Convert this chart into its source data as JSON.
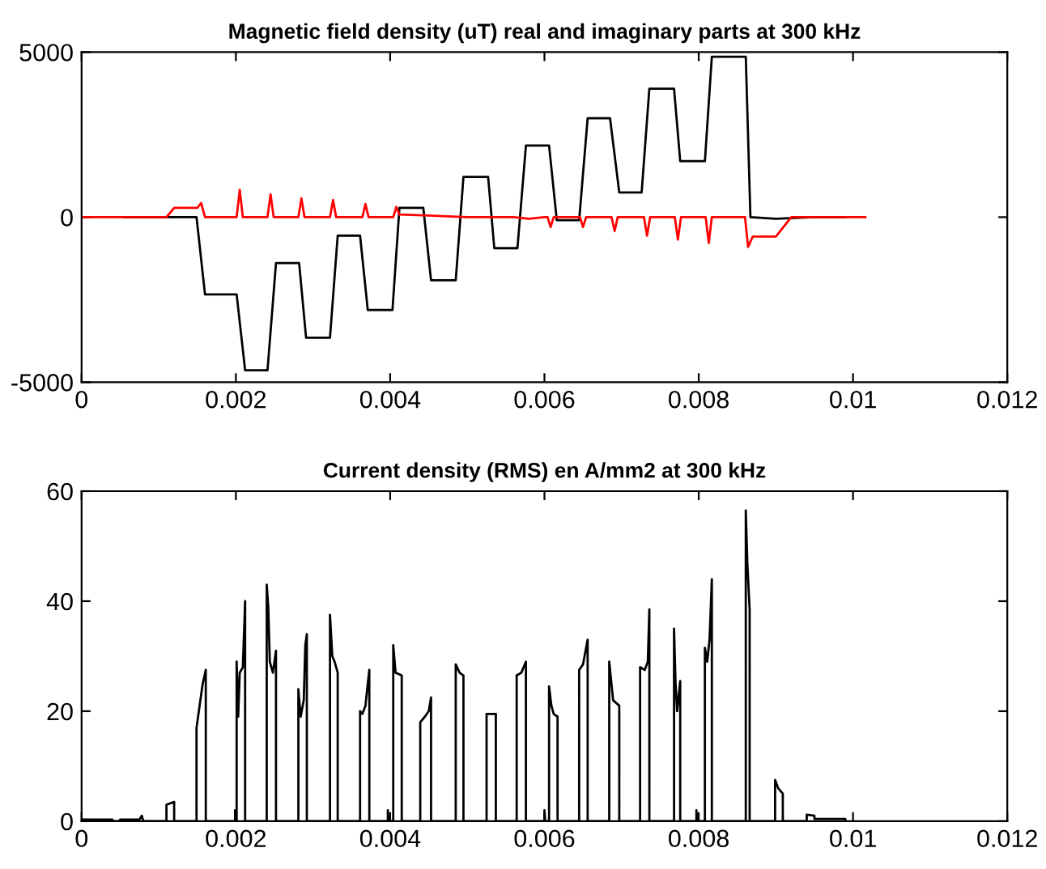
{
  "chart_data": [
    {
      "type": "line",
      "title": "Magnetic field density (uT) real and imaginary parts at 300 kHz",
      "grid": false,
      "legend": false,
      "xlim": [
        0,
        0.012
      ],
      "xticks": [
        0,
        0.002,
        0.004,
        0.006,
        0.008,
        {
          "value": 0.01,
          "label": "0.01"
        },
        0.012
      ],
      "ylim": [
        -5000,
        5000
      ],
      "yticks": [
        -5000,
        0,
        5000
      ],
      "series": [
        {
          "color": "#000000",
          "x": [
            0.00055,
            0.00149,
            0.0016,
            0.00201,
            0.00212,
            0.00241,
            0.00252,
            0.00282,
            0.00291,
            0.00322,
            0.00332,
            0.00361,
            0.00371,
            0.00403,
            0.00412,
            0.00443,
            0.00453,
            0.00485,
            0.00495,
            0.00527,
            0.00535,
            0.00565,
            0.00576,
            0.00606,
            0.00616,
            0.00645,
            0.00656,
            0.00685,
            0.00697,
            0.00726,
            0.00736,
            0.00768,
            0.00776,
            0.00808,
            0.00817,
            0.00861,
            0.00867,
            0.009,
            0.0095,
            0.0099
          ],
          "values": [
            0,
            0,
            -2340,
            -2340,
            -4640,
            -4640,
            -1390,
            -1390,
            -3650,
            -3650,
            -560,
            -560,
            -2810,
            -2810,
            280,
            280,
            -1910,
            -1910,
            1220,
            1220,
            -940,
            -940,
            2170,
            2170,
            -90,
            -90,
            3000,
            3000,
            750,
            750,
            3890,
            3890,
            1700,
            1700,
            4860,
            4860,
            0,
            -50,
            0,
            0
          ]
        },
        {
          "color": "#ff0000",
          "x": [
            0,
            0.0011,
            0.0012,
            0.0015,
            0.00155,
            0.0016,
            0.00201,
            0.00205,
            0.00209,
            0.00241,
            0.00245,
            0.00249,
            0.00281,
            0.00285,
            0.00289,
            0.00322,
            0.00326,
            0.0033,
            0.00364,
            0.00368,
            0.00372,
            0.00404,
            0.00408,
            0.00412,
            0.0045,
            0.005,
            0.0056,
            0.0058,
            0.006,
            0.00604,
            0.00608,
            0.00612,
            0.00646,
            0.0065,
            0.00654,
            0.00687,
            0.00691,
            0.00695,
            0.00729,
            0.00733,
            0.00737,
            0.00769,
            0.00773,
            0.00777,
            0.00809,
            0.00813,
            0.00817,
            0.0086,
            0.00864,
            0.0087,
            0.009,
            0.0092,
            0.01016
          ],
          "values": [
            0,
            0,
            280,
            280,
            430,
            0,
            0,
            830,
            0,
            0,
            690,
            0,
            0,
            570,
            0,
            0,
            520,
            0,
            0,
            400,
            0,
            0,
            310,
            80,
            50,
            0,
            0,
            -50,
            0,
            0,
            -300,
            0,
            0,
            -300,
            0,
            0,
            -420,
            0,
            0,
            -560,
            0,
            0,
            -680,
            0,
            0,
            -780,
            0,
            0,
            -900,
            -590,
            -590,
            0,
            0
          ]
        }
      ]
    },
    {
      "type": "line",
      "title": "Current density (RMS) en A/mm2 at 300 kHz",
      "grid": false,
      "legend": false,
      "xlim": [
        0,
        0.012
      ],
      "xticks": [
        0,
        0.002,
        0.004,
        0.006,
        0.008,
        {
          "value": 0.01,
          "label": "0.01"
        },
        0.012
      ],
      "ylim": [
        0,
        60
      ],
      "yticks": [
        0,
        20,
        40,
        60
      ],
      "series": [
        {
          "color": "#000000",
          "x": [
            0,
            0.0004,
            0.0004,
            0.0005,
            0.0005,
            0.00075,
            0.00078,
            0.0008,
            0.0011,
            0.0011,
            0.0012,
            0.0012,
            0.00149,
            0.00149,
            0.00153,
            0.00157,
            0.00161,
            0.00161,
            0.00199,
            0.00199,
            0.002,
            0.00201,
            0.00201,
            0.00203,
            0.00205,
            0.00209,
            0.00212,
            0.00212,
            0.0024,
            0.0024,
            0.00242,
            0.00244,
            0.00248,
            0.00252,
            0.00252,
            0.00281,
            0.00281,
            0.00284,
            0.00288,
            0.0029,
            0.00292,
            0.00292,
            0.00322,
            0.00322,
            0.00325,
            0.00328,
            0.00332,
            0.00332,
            0.00361,
            0.00361,
            0.00364,
            0.00368,
            0.00371,
            0.00373,
            0.00373,
            0.00397,
            0.00397,
            0.00398,
            0.00404,
            0.00404,
            0.00407,
            0.00415,
            0.00415,
            0.00439,
            0.00439,
            0.00445,
            0.0045,
            0.00453,
            0.00453,
            0.00485,
            0.00485,
            0.0049,
            0.00495,
            0.00495,
            0.00525,
            0.00525,
            0.00537,
            0.00537,
            0.00564,
            0.00564,
            0.0057,
            0.00576,
            0.00576,
            0.006,
            0.006,
            0.00601,
            0.00606,
            0.00606,
            0.00609,
            0.00612,
            0.00617,
            0.00617,
            0.00645,
            0.00645,
            0.0065,
            0.00656,
            0.00656,
            0.00684,
            0.00684,
            0.00689,
            0.00697,
            0.00697,
            0.00724,
            0.00724,
            0.0073,
            0.00734,
            0.00736,
            0.00736,
            0.00768,
            0.00768,
            0.0077,
            0.00772,
            0.00776,
            0.00776,
            0.00797,
            0.00797,
            0.00798,
            0.00808,
            0.00808,
            0.00811,
            0.00814,
            0.00817,
            0.00817,
            0.00861,
            0.00861,
            0.00863,
            0.00866,
            0.00866,
            0.00899,
            0.00899,
            0.00903,
            0.00909,
            0.00909,
            0.0094,
            0.0094,
            0.0095,
            0.0095,
            0.0099,
            0.0099
          ],
          "values": [
            0.3,
            0.3,
            0,
            0,
            0.3,
            0.3,
            1,
            0,
            0,
            3,
            3.5,
            0,
            0,
            17,
            21,
            25,
            27.5,
            0,
            0,
            2,
            0,
            0,
            29,
            19,
            27,
            28,
            40,
            0,
            0,
            43,
            39,
            29,
            27,
            31,
            0,
            0,
            24,
            19,
            22,
            32,
            34,
            0,
            0,
            37.5,
            30,
            29,
            27,
            0,
            0,
            20,
            19.5,
            21,
            25,
            27.5,
            0,
            0,
            2,
            0,
            0,
            32,
            27,
            26.5,
            0,
            0,
            18,
            19,
            20,
            22.5,
            0,
            0,
            28.5,
            27,
            26.5,
            0,
            0,
            19.5,
            19.5,
            0,
            0,
            26.5,
            27,
            29,
            0,
            0,
            2,
            0,
            0,
            24.5,
            21,
            19.5,
            19,
            0,
            0,
            27.5,
            28.5,
            33,
            0,
            0,
            29,
            22,
            21,
            0,
            0,
            28,
            27.5,
            29,
            38.5,
            0,
            0,
            35,
            25,
            20,
            25.5,
            0,
            0,
            2,
            0,
            0,
            31.5,
            29,
            33,
            44,
            0,
            0,
            56.5,
            47,
            38.5,
            0,
            0,
            7.5,
            6,
            5,
            0,
            0,
            1.2,
            1,
            0.4,
            0.4,
            0
          ]
        }
      ]
    }
  ]
}
